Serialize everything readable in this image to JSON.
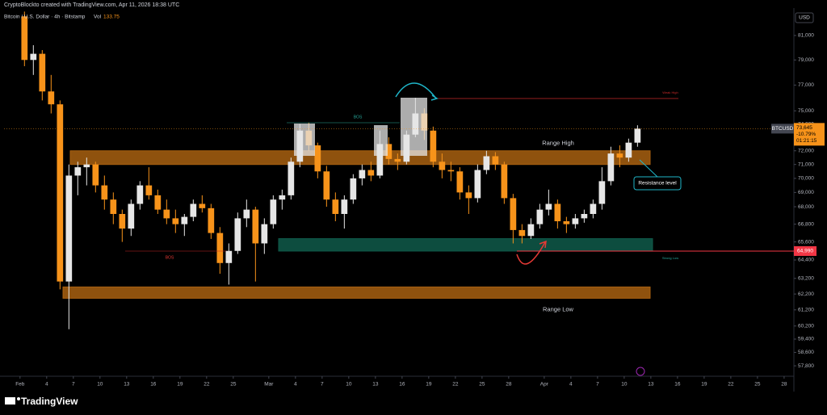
{
  "header": {
    "credit": "CryptoBlockto created with TradingView.com, Apr 11, 2026 18:38 UTC",
    "symbol": "Bitcoin / U.S. Dollar · 4h · Bitstamp",
    "volume_label": "Vol",
    "volume": "133.75",
    "currency": "USD"
  },
  "footer": {
    "brand": "TradingView"
  },
  "chart_data": {
    "type": "candlestick",
    "log_scale": true,
    "up_color": "#e6e6e6",
    "down_color": "#f7931a",
    "x": [
      0,
      1,
      2,
      3,
      4,
      5,
      6,
      7,
      8,
      9,
      10,
      11,
      12,
      13,
      14,
      15,
      16,
      17,
      18,
      19,
      20,
      21,
      22,
      23,
      24,
      25,
      26,
      27,
      28,
      29,
      30,
      31,
      32,
      33,
      34,
      35,
      36,
      37,
      38,
      39,
      40,
      41,
      42,
      43,
      44,
      45,
      46,
      47,
      48,
      49,
      50,
      51,
      52,
      53,
      54,
      55,
      56,
      57,
      58,
      59,
      60,
      61,
      62,
      63,
      64,
      65,
      66,
      67,
      68,
      69
    ],
    "open": [
      82600,
      79000,
      79500,
      76500,
      75500,
      63000,
      70200,
      70800,
      71000,
      69500,
      68500,
      67500,
      66500,
      68200,
      69500,
      68800,
      67800,
      67200,
      66800,
      67300,
      68200,
      67900,
      66200,
      64200,
      65000,
      67200,
      67800,
      65500,
      66800,
      68500,
      68800,
      71200,
      73500,
      72400,
      70500,
      68500,
      67500,
      68500,
      70000,
      70600,
      70200,
      72500,
      71400,
      71200,
      73200,
      74800,
      73500,
      71200,
      70600,
      70500,
      69000,
      68600,
      70600,
      71600,
      71000,
      68600,
      66400,
      66000,
      66800,
      67800,
      68200,
      67000,
      66800,
      67200,
      67500,
      68200,
      69800,
      71800,
      71500,
      72600
    ],
    "high": [
      83000,
      80200,
      79800,
      77800,
      75800,
      71000,
      71200,
      71500,
      71200,
      70200,
      69000,
      67800,
      68500,
      69800,
      70800,
      69200,
      68500,
      67800,
      67500,
      68500,
      68800,
      68200,
      66600,
      65500,
      67600,
      68500,
      68000,
      67200,
      68800,
      69200,
      71500,
      74000,
      74100,
      72600,
      70900,
      69000,
      68800,
      70300,
      71000,
      71200,
      73500,
      73000,
      71800,
      73500,
      76000,
      75200,
      73800,
      71800,
      71200,
      70800,
      69500,
      71000,
      72000,
      71900,
      71200,
      68900,
      66800,
      67200,
      68200,
      69200,
      68500,
      67300,
      67500,
      67800,
      68500,
      70800,
      72300,
      72400,
      72900,
      73900
    ],
    "low": [
      78500,
      77800,
      75800,
      74800,
      62500,
      60000,
      68800,
      69500,
      69000,
      67800,
      66800,
      65600,
      66000,
      67800,
      68500,
      67500,
      66800,
      66200,
      66000,
      67000,
      67600,
      65800,
      63500,
      62800,
      64800,
      66600,
      63000,
      64800,
      66500,
      67800,
      68500,
      70800,
      72000,
      70000,
      68000,
      67000,
      66500,
      68200,
      69500,
      69800,
      70000,
      71000,
      70600,
      71000,
      73000,
      72800,
      70800,
      70000,
      69800,
      68500,
      67500,
      68300,
      70300,
      70600,
      68200,
      65500,
      65500,
      65800,
      66500,
      67400,
      66500,
      66200,
      66500,
      66900,
      67200,
      67800,
      69500,
      70800,
      71200,
      72300
    ],
    "close": [
      79000,
      79500,
      76500,
      75500,
      63000,
      70200,
      70800,
      71000,
      69500,
      68500,
      67500,
      66500,
      68200,
      69500,
      68800,
      67800,
      67200,
      66800,
      67300,
      68200,
      67900,
      66200,
      64200,
      65000,
      67200,
      67800,
      65500,
      66800,
      68500,
      68800,
      71200,
      73500,
      72400,
      70500,
      68500,
      67500,
      68500,
      70000,
      70600,
      70200,
      72500,
      71400,
      71200,
      73200,
      74800,
      73500,
      71200,
      70600,
      70500,
      69000,
      68600,
      70600,
      71600,
      71000,
      68600,
      66400,
      66000,
      66800,
      67800,
      68200,
      67000,
      66800,
      67200,
      67500,
      68200,
      69800,
      71800,
      71500,
      72600,
      73645
    ],
    "xlim": [
      -1.8,
      87.1
    ],
    "xticks": [
      {
        "value": 0,
        "label": "Feb"
      },
      {
        "value": 3,
        "label": "4"
      },
      {
        "value": 6,
        "label": "7"
      },
      {
        "value": 9,
        "label": "10"
      },
      {
        "value": 12,
        "label": "13"
      },
      {
        "value": 15,
        "label": "16"
      },
      {
        "value": 18,
        "label": "19"
      },
      {
        "value": 21,
        "label": "22"
      },
      {
        "value": 24,
        "label": "25"
      },
      {
        "value": 28,
        "label": "Mar"
      },
      {
        "value": 31,
        "label": "4"
      },
      {
        "value": 34,
        "label": "7"
      },
      {
        "value": 37,
        "label": "10"
      },
      {
        "value": 40,
        "label": "13"
      },
      {
        "value": 43,
        "label": "16"
      },
      {
        "value": 46,
        "label": "19"
      },
      {
        "value": 49,
        "label": "22"
      },
      {
        "value": 52,
        "label": "25"
      },
      {
        "value": 55,
        "label": "28"
      },
      {
        "value": 59,
        "label": "Apr"
      },
      {
        "value": 62,
        "label": "4"
      },
      {
        "value": 65,
        "label": "7"
      },
      {
        "value": 68,
        "label": "10"
      },
      {
        "value": 71,
        "label": "13"
      },
      {
        "value": 74,
        "label": "16"
      },
      {
        "value": 77,
        "label": "19"
      },
      {
        "value": 80,
        "label": "22"
      },
      {
        "value": 83,
        "label": "25"
      },
      {
        "value": 86,
        "label": "28"
      }
    ],
    "ylim": [
      57330,
      83300
    ],
    "yticks": [
      {
        "value": 81000,
        "label": "81,000"
      },
      {
        "value": 79000,
        "label": "79,000"
      },
      {
        "value": 77000,
        "label": "77,000"
      },
      {
        "value": 75000,
        "label": "75,000"
      },
      {
        "value": 74000,
        "label": "74,000"
      },
      {
        "value": 72000,
        "label": "72,000"
      },
      {
        "value": 71000,
        "label": "71,000"
      },
      {
        "value": 70000,
        "label": "70,000"
      },
      {
        "value": 69000,
        "label": "69,000"
      },
      {
        "value": 68000,
        "label": "68,000"
      },
      {
        "value": 66800,
        "label": "66,800"
      },
      {
        "value": 65600,
        "label": "65,600"
      },
      {
        "value": 64400,
        "label": "64,400"
      },
      {
        "value": 63200,
        "label": "63,200"
      },
      {
        "value": 62200,
        "label": "62,200"
      },
      {
        "value": 61200,
        "label": "61,200"
      },
      {
        "value": 60200,
        "label": "60,200"
      },
      {
        "value": 59400,
        "label": "59,400"
      },
      {
        "value": 58600,
        "label": "58,600"
      },
      {
        "value": 57800,
        "label": "57,800"
      }
    ],
    "zones": [
      {
        "label": "Range High",
        "low": 71000,
        "high": 72000,
        "color": "#a86010"
      },
      {
        "label": "Range Low",
        "low": 61930,
        "high": 62650,
        "color": "#a86010"
      },
      {
        "low": 64990,
        "high": 65820,
        "color": "#0f5a4a"
      }
    ],
    "last_price": {
      "symbol": "BTCUSD",
      "value": 73645,
      "label": "73,645",
      "change": "-10.79%",
      "countdown": "01:21:15",
      "color": "#f7931a"
    },
    "price_line": {
      "value": 64990,
      "label": "64,990",
      "color": "#f23645"
    },
    "annotations": [
      "Resistance level",
      "BOS",
      "BOS",
      "Weak High",
      "Strong Low"
    ]
  }
}
